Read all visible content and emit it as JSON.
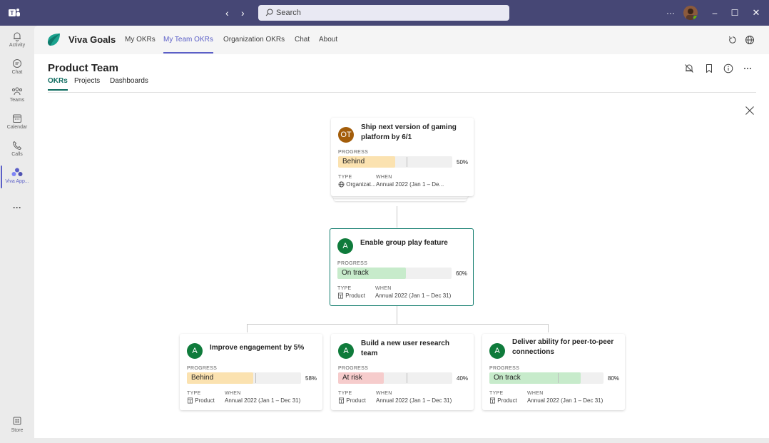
{
  "titlebar": {
    "search_placeholder": "Search",
    "more": "···"
  },
  "rail": {
    "items": [
      {
        "label": "Activity",
        "icon": "bell-icon"
      },
      {
        "label": "Chat",
        "icon": "chat-icon"
      },
      {
        "label": "Teams",
        "icon": "teams-icon"
      },
      {
        "label": "Calendar",
        "icon": "calendar-icon"
      },
      {
        "label": "Calls",
        "icon": "phone-icon"
      },
      {
        "label": "Viva App...",
        "icon": "viva-app-icon"
      }
    ],
    "more": "···",
    "store": "Store"
  },
  "app": {
    "name": "Viva Goals",
    "tabs": [
      "My OKRs",
      "My Team OKRs",
      "Organization OKRs",
      "Chat",
      "About"
    ],
    "active_tab": "My Team OKRs"
  },
  "page": {
    "title": "Product Team",
    "subtabs": [
      "OKRs",
      "Projects",
      "Dashboards"
    ],
    "active_subtab": "OKRs"
  },
  "labels": {
    "progress": "PROGRESS",
    "type": "TYPE",
    "when": "WHEN"
  },
  "colors": {
    "accent": "#5b5fc7",
    "teal": "#0f7b6c",
    "behind": "#fbe2b0",
    "on_track": "#c7ebcb",
    "at_risk": "#f6cccc",
    "avatar_ot": "#a35d0a",
    "avatar_a": "#0f7b3b"
  },
  "cards": [
    {
      "avatar": "OT",
      "title": "Ship next version of gaming platform by 6/1",
      "status": "Behind",
      "progress": 0.5,
      "percent": "50%",
      "type": "Organizat...",
      "type_icon": "globe-icon",
      "when": "Annual 2022 (Jan 1 – De..."
    },
    {
      "avatar": "A",
      "title": "Enable group play feature",
      "status": "On track",
      "progress": 0.6,
      "percent": "60%",
      "type": "Product",
      "type_icon": "building-icon",
      "when": "Annual 2022 (Jan 1 – Dec 31)"
    },
    {
      "avatar": "A",
      "title": "Improve engagement by 5%",
      "status": "Behind",
      "progress": 0.58,
      "percent": "58%",
      "type": "Product",
      "type_icon": "building-icon",
      "when": "Annual 2022 (Jan 1 – Dec 31)"
    },
    {
      "avatar": "A",
      "title": "Build a new user research team",
      "status": "At risk",
      "progress": 0.4,
      "percent": "40%",
      "type": "Product",
      "type_icon": "building-icon",
      "when": "Annual 2022 (Jan 1 – Dec 31)"
    },
    {
      "avatar": "A",
      "title": "Deliver ability for peer-to-peer connections",
      "status": "On track",
      "progress": 0.8,
      "percent": "80%",
      "type": "Product",
      "type_icon": "building-icon",
      "when": "Annual 2022 (Jan 1 – Dec 31)"
    }
  ]
}
